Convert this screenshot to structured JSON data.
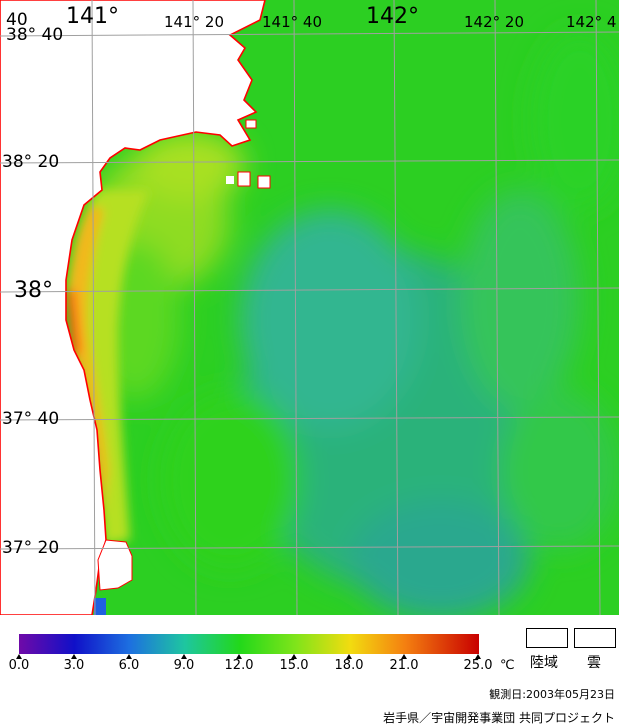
{
  "map": {
    "lat_labels": [
      "38° 40",
      "38° 20",
      "38°",
      "37° 40",
      "37° 20"
    ],
    "lon_labels": [
      "141°",
      "141° 20",
      "141° 40",
      "142°",
      "142° 20",
      "142° 4"
    ],
    "corner_label": "40",
    "colors": {
      "sea_green": "#2ecf1e",
      "offshore_blue": "#2aae8a",
      "coast_warm": "#f4b21a",
      "coast_hot": "#ff4a10",
      "coastline": "#ff0000",
      "land": "#ffffff",
      "grid": "#a0a0a0"
    }
  },
  "colorbar": {
    "tick_labels": [
      "0.0",
      "3.0",
      "6.0",
      "9.0",
      "12.0",
      "15.0",
      "18.0",
      "21.0",
      "25.0"
    ],
    "unit": "℃",
    "colors": [
      "#6f0aa8",
      "#1010c8",
      "#1d6fe0",
      "#1ec6a0",
      "#22d81a",
      "#7ee41a",
      "#f2dc10",
      "#f47f10",
      "#c80000"
    ]
  },
  "legend": {
    "land_label": "陸域",
    "cloud_label": "雲"
  },
  "observation_date": "観測日:2003年05月23日",
  "credit": "岩手県／宇宙開発事業団 共同プロジェクト"
}
